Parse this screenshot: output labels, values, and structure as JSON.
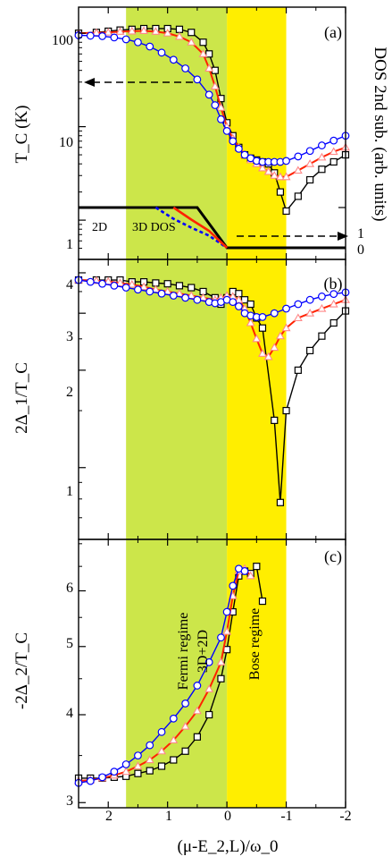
{
  "chart_data": [
    {
      "type": "line",
      "panel": "(a)",
      "ylabel": "T_C (K)",
      "ylabel_right": "DOS 2nd sub. (arb. units)",
      "xlabel": "(μ-E_2,L)/ω_0",
      "x_ticks": [
        "2",
        "1",
        "0",
        "-1",
        "-2"
      ],
      "y_ticks": [
        "100",
        "10",
        "1"
      ],
      "y_ticks_right": [
        "1",
        "0"
      ],
      "yscale": "log",
      "ylim": [
        0.38,
        190
      ],
      "xlim": [
        2.5,
        -2
      ],
      "shaded": [
        {
          "name": "Fermi regime",
          "from": 1.7,
          "to": 0.0,
          "color": "#cce64a"
        },
        {
          "name": "Bose regime",
          "from": 0.0,
          "to": -1.0,
          "color": "#ffee00"
        }
      ],
      "annotations": [
        "2D",
        "3D DOS"
      ],
      "series": [
        {
          "marker": "square",
          "color": "#000000",
          "x": [
            2.5,
            2.2,
            2.0,
            1.8,
            1.6,
            1.4,
            1.2,
            1.0,
            0.8,
            0.6,
            0.4,
            0.3,
            0.2,
            0.1,
            0.0,
            -0.1,
            -0.2,
            -0.3,
            -0.4,
            -0.5,
            -0.6,
            -0.7,
            -0.8,
            -0.9,
            -1.0,
            -1.2,
            -1.4,
            -1.6,
            -1.8,
            -2.0
          ],
          "y": [
            100,
            102,
            105,
            108,
            110,
            112,
            112,
            112,
            110,
            102,
            80,
            60,
            40,
            20,
            11,
            8,
            6,
            5,
            4.6,
            4.4,
            4.2,
            4.0,
            3.2,
            2.0,
            1.25,
            1.8,
            2.7,
            3.5,
            4.2,
            5.0
          ]
        },
        {
          "marker": "triangle",
          "color": "#ff2200",
          "x": [
            2.5,
            2.2,
            2.0,
            1.8,
            1.6,
            1.4,
            1.2,
            1.0,
            0.8,
            0.6,
            0.4,
            0.3,
            0.2,
            0.1,
            0.0,
            -0.1,
            -0.2,
            -0.3,
            -0.4,
            -0.5,
            -0.6,
            -0.7,
            -0.8,
            -0.9,
            -1.0,
            -1.2,
            -1.4,
            -1.6,
            -1.8,
            -2.0
          ],
          "y": [
            100,
            101,
            102,
            104,
            105,
            106,
            104,
            100,
            92,
            80,
            60,
            42,
            27,
            16,
            10,
            7.5,
            6,
            5,
            4.4,
            4.0,
            3.6,
            3.3,
            3.0,
            2.9,
            2.9,
            3.4,
            4.0,
            4.7,
            5.4,
            6.0
          ]
        },
        {
          "marker": "circle",
          "color": "#0000ff",
          "x": [
            2.5,
            2.3,
            2.1,
            1.9,
            1.7,
            1.5,
            1.3,
            1.1,
            0.9,
            0.7,
            0.5,
            0.3,
            0.2,
            0.1,
            0.0,
            -0.1,
            -0.2,
            -0.3,
            -0.4,
            -0.5,
            -0.6,
            -0.7,
            -0.8,
            -0.9,
            -1.0,
            -1.2,
            -1.4,
            -1.6,
            -1.8,
            -2.0
          ],
          "y": [
            95,
            94,
            93,
            90,
            86,
            80,
            72,
            62,
            52,
            42,
            32,
            22,
            17,
            12,
            9,
            7,
            5.8,
            5.0,
            4.6,
            4.3,
            4.2,
            4.2,
            4.2,
            4.2,
            4.3,
            4.8,
            5.5,
            6.3,
            7.1,
            8.0
          ]
        }
      ],
      "dos": [
        {
          "style": "solid-thick",
          "color": "#000000",
          "x": [
            2.5,
            0.5,
            0.0,
            -0.5,
            -2.0
          ],
          "y": [
            1.0,
            1.0,
            0.0,
            0.0,
            0.0
          ]
        },
        {
          "style": "dashed",
          "color": "#0000ff",
          "x": [
            1.2,
            0.9,
            0.6,
            0.3,
            0.0
          ],
          "y": [
            1.0,
            0.72,
            0.5,
            0.3,
            0.0
          ]
        },
        {
          "style": "solid",
          "color": "#ff2200",
          "x": [
            0.9,
            0.6,
            0.3,
            0.0
          ],
          "y": [
            1.0,
            0.7,
            0.42,
            0.0
          ]
        }
      ]
    },
    {
      "type": "line",
      "panel": "(b)",
      "ylabel": "2Δ_1/T_C",
      "y_ticks": [
        "4",
        "3",
        "2",
        "1"
      ],
      "yscale": "log",
      "ylim": [
        0.6,
        4.4
      ],
      "series": [
        {
          "marker": "square",
          "color": "#000000",
          "x": [
            2.5,
            2.2,
            2.0,
            1.8,
            1.6,
            1.4,
            1.2,
            1.0,
            0.8,
            0.6,
            0.4,
            0.2,
            0.1,
            0.0,
            -0.1,
            -0.2,
            -0.3,
            -0.4,
            -0.5,
            -0.6,
            -0.8,
            -0.9,
            -1.0,
            -1.2,
            -1.4,
            -1.6,
            -1.8,
            -2.0
          ],
          "y": [
            3.8,
            3.8,
            3.8,
            3.8,
            3.75,
            3.75,
            3.72,
            3.7,
            3.65,
            3.6,
            3.5,
            3.35,
            3.2,
            3.35,
            3.5,
            3.45,
            3.3,
            3.2,
            2.9,
            2.7,
            1.4,
            0.78,
            1.5,
            2.0,
            2.3,
            2.55,
            2.8,
            3.05
          ]
        },
        {
          "marker": "triangle",
          "color": "#ff2200",
          "x": [
            2.5,
            2.2,
            2.0,
            1.8,
            1.6,
            1.4,
            1.2,
            1.0,
            0.8,
            0.6,
            0.4,
            0.2,
            0.1,
            0.0,
            -0.1,
            -0.2,
            -0.3,
            -0.4,
            -0.5,
            -0.6,
            -0.7,
            -0.8,
            -0.9,
            -1.0,
            -1.2,
            -1.4,
            -1.6,
            -1.8,
            -2.0
          ],
          "y": [
            3.8,
            3.78,
            3.76,
            3.72,
            3.68,
            3.62,
            3.55,
            3.5,
            3.45,
            3.4,
            3.35,
            3.3,
            3.35,
            3.4,
            3.38,
            3.3,
            3.1,
            2.8,
            2.5,
            2.25,
            2.2,
            2.35,
            2.55,
            2.7,
            2.9,
            3.0,
            3.1,
            3.2,
            3.3
          ]
        },
        {
          "marker": "circle",
          "color": "#0000ff",
          "x": [
            2.5,
            2.3,
            2.1,
            1.9,
            1.7,
            1.5,
            1.3,
            1.1,
            0.9,
            0.7,
            0.5,
            0.3,
            0.2,
            0.1,
            0.0,
            -0.1,
            -0.2,
            -0.3,
            -0.4,
            -0.5,
            -0.6,
            -0.8,
            -1.0,
            -1.2,
            -1.4,
            -1.6,
            -1.8,
            -2.0
          ],
          "y": [
            3.8,
            3.75,
            3.7,
            3.65,
            3.6,
            3.55,
            3.5,
            3.45,
            3.4,
            3.35,
            3.3,
            3.25,
            3.22,
            3.25,
            3.3,
            3.25,
            3.15,
            3.0,
            2.95,
            2.92,
            2.92,
            3.0,
            3.1,
            3.2,
            3.3,
            3.38,
            3.44,
            3.48
          ]
        }
      ]
    },
    {
      "type": "line",
      "panel": "(c)",
      "ylabel": "-2Δ_2/T_C",
      "y_ticks": [
        "6",
        "5",
        "4",
        "3"
      ],
      "yscale": "log",
      "ylim": [
        2.95,
        7.1
      ],
      "regime_labels": [
        "Fermi regime",
        "3D+2D",
        "Bose regime"
      ],
      "series": [
        {
          "marker": "square",
          "color": "#000000",
          "x": [
            2.5,
            2.3,
            2.1,
            1.9,
            1.7,
            1.5,
            1.3,
            1.1,
            0.9,
            0.7,
            0.5,
            0.3,
            0.1,
            0.0,
            -0.1,
            -0.2,
            -0.3,
            -0.4,
            -0.5,
            -0.6
          ],
          "y": [
            3.25,
            3.25,
            3.25,
            3.26,
            3.27,
            3.3,
            3.33,
            3.38,
            3.45,
            3.55,
            3.72,
            4.0,
            4.5,
            4.95,
            5.6,
            6.3,
            6.4,
            6.35,
            6.5,
            5.8
          ]
        },
        {
          "marker": "triangle",
          "color": "#ff2200",
          "x": [
            2.5,
            2.3,
            2.1,
            1.9,
            1.7,
            1.5,
            1.3,
            1.1,
            0.9,
            0.7,
            0.5,
            0.3,
            0.1,
            0.0,
            -0.1,
            -0.2,
            -0.3,
            -0.4
          ],
          "y": [
            3.22,
            3.23,
            3.25,
            3.28,
            3.32,
            3.38,
            3.45,
            3.55,
            3.68,
            3.85,
            4.05,
            4.35,
            4.75,
            5.25,
            5.9,
            6.4,
            6.45,
            6.3
          ]
        },
        {
          "marker": "circle",
          "color": "#0000ff",
          "x": [
            2.5,
            2.3,
            2.1,
            1.9,
            1.7,
            1.5,
            1.3,
            1.1,
            0.9,
            0.7,
            0.5,
            0.3,
            0.1,
            0.0,
            -0.1,
            -0.2,
            -0.3
          ],
          "y": [
            3.2,
            3.22,
            3.26,
            3.32,
            3.4,
            3.5,
            3.62,
            3.78,
            3.95,
            4.15,
            4.4,
            4.75,
            5.15,
            5.6,
            6.1,
            6.45,
            6.4
          ]
        }
      ]
    }
  ]
}
